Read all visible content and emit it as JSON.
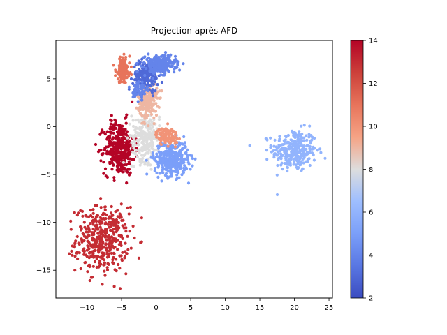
{
  "chart_data": {
    "type": "scatter",
    "title": "Projection après AFD",
    "xlabel": "",
    "ylabel": "",
    "xlim": [
      -14.5,
      25.5
    ],
    "ylim": [
      -17.9,
      9.0
    ],
    "xticks": [
      -10,
      -5,
      0,
      5,
      10,
      15,
      20,
      25
    ],
    "xtick_labels": [
      "−10",
      "−5",
      "0",
      "5",
      "10",
      "15",
      "20",
      "25"
    ],
    "yticks": [
      -15,
      -10,
      -5,
      0,
      5
    ],
    "ytick_labels": [
      "−15",
      "−10",
      "−5",
      "0",
      "5"
    ],
    "grid": false,
    "colormap": "coolwarm",
    "colorbar": {
      "min": 2,
      "max": 14,
      "ticks": [
        2,
        4,
        6,
        8,
        10,
        12,
        14
      ],
      "tick_labels": [
        "2",
        "4",
        "6",
        "8",
        "10",
        "12",
        "14"
      ]
    },
    "clusters": [
      {
        "label_value": 6,
        "center": [
          20.0,
          -2.5
        ],
        "spread": [
          1.6,
          1.1
        ],
        "count": 300
      },
      {
        "label_value": 13,
        "center": [
          -7.8,
          -11.8
        ],
        "spread": [
          1.9,
          1.7
        ],
        "count": 420
      },
      {
        "label_value": 14,
        "center": [
          -5.3,
          -2.2
        ],
        "spread": [
          1.1,
          1.4
        ],
        "count": 380
      },
      {
        "label_value": 8,
        "center": [
          -1.5,
          -1.0
        ],
        "spread": [
          1.0,
          1.3
        ],
        "count": 250
      },
      {
        "label_value": 5,
        "center": [
          2.2,
          -3.3
        ],
        "spread": [
          1.2,
          0.9
        ],
        "count": 380
      },
      {
        "label_value": 10,
        "center": [
          1.6,
          -1.0
        ],
        "spread": [
          0.8,
          0.45
        ],
        "count": 120
      },
      {
        "label_value": 9,
        "center": [
          -1.2,
          2.7
        ],
        "spread": [
          0.7,
          0.9
        ],
        "count": 230
      },
      {
        "label_value": 3,
        "center": [
          -1.5,
          5.3
        ],
        "spread": [
          0.9,
          0.8
        ],
        "count": 180
      },
      {
        "label_value": 4,
        "center": [
          -2.3,
          3.9
        ],
        "spread": [
          0.5,
          0.5
        ],
        "count": 60
      },
      {
        "label_value": 4,
        "center": [
          0.6,
          6.5
        ],
        "spread": [
          1.1,
          0.45
        ],
        "count": 270
      },
      {
        "label_value": 11,
        "center": [
          -4.8,
          5.9
        ],
        "spread": [
          0.5,
          0.65
        ],
        "count": 150
      }
    ]
  }
}
